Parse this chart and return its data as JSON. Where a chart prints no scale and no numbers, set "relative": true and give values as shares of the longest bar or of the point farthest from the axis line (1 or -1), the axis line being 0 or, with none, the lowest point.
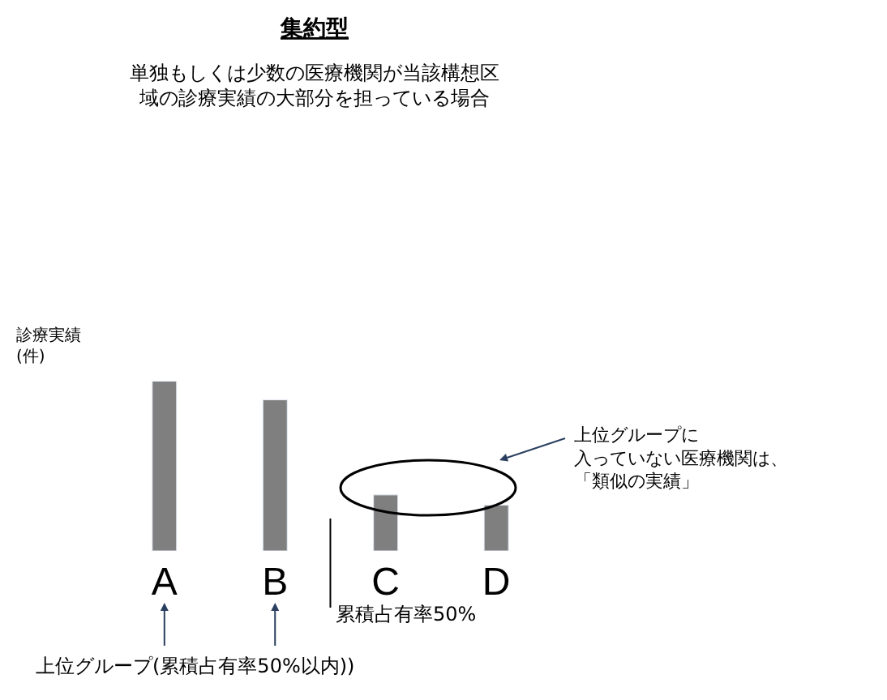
{
  "chart_data": {
    "type": "bar",
    "relative": true,
    "title": "集約型",
    "subtitle": "単独もしくは少数の医療機関が当該構想区域の診療実績の大部分を担っている場合",
    "ylabel": "診療実績\n(件)",
    "categories": [
      "A",
      "B",
      "C",
      "D"
    ],
    "values": [
      1,
      0.89,
      0.33,
      0.27
    ],
    "color": "#7f7f7f",
    "annotations": [
      "上位グループに入っていない医療機関は、「類似の実績」",
      "累積占有率50%",
      "上位グループ(累積占有率50%以内))"
    ]
  }
}
